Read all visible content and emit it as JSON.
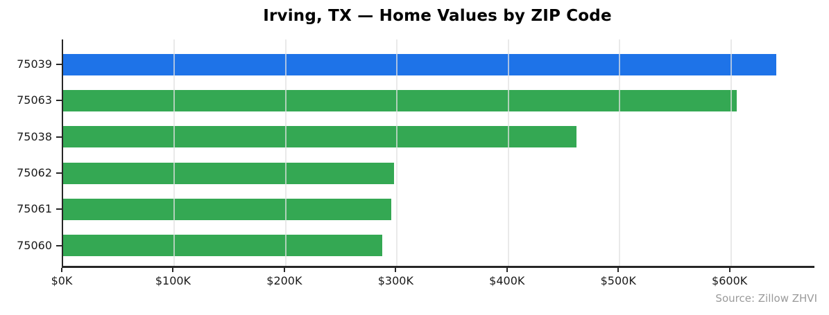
{
  "title": "Irving, TX — Home Values by ZIP Code",
  "source_note": "Source: Zillow ZHVI",
  "chart_data": {
    "type": "bar",
    "orientation": "horizontal",
    "title": "Irving, TX — Home Values by ZIP Code",
    "categories": [
      "75039",
      "75063",
      "75038",
      "75062",
      "75061",
      "75060"
    ],
    "values": [
      641,
      605,
      461,
      297,
      295,
      287
    ],
    "values_unit": "thousand USD (ZHVI home value)",
    "xlabel": "",
    "ylabel": "",
    "xlim": [
      0,
      675
    ],
    "x_ticks": [
      0,
      100,
      200,
      300,
      400,
      500,
      600
    ],
    "x_tick_labels": [
      "$0K",
      "$100K",
      "$200K",
      "$300K",
      "$400K",
      "$500K",
      "$600K"
    ],
    "grid": "vertical-gridlines-on",
    "legend": "none",
    "highlight_index": 0,
    "highlight_color": "#1e73e8",
    "bar_color": "#34a853",
    "annotation": "Source: Zillow ZHVI"
  }
}
